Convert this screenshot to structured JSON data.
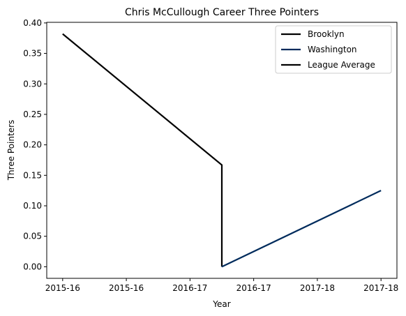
{
  "chart_data": {
    "type": "line",
    "title": "Chris McCullough Career Three Pointers",
    "xlabel": "Year",
    "ylabel": "Three Pointers",
    "x_tick_labels": [
      "2015-16",
      "2015-16",
      "2016-17",
      "2016-17",
      "2017-18",
      "2017-18"
    ],
    "x_tick_values": [
      0,
      1,
      2,
      3,
      4,
      5
    ],
    "xlim": [
      -0.25,
      5.25
    ],
    "y_ticks": [
      0.0,
      0.05,
      0.1,
      0.15,
      0.2,
      0.25,
      0.3,
      0.35,
      0.4
    ],
    "y_tick_labels": [
      "0.00",
      "0.05",
      "0.10",
      "0.15",
      "0.20",
      "0.25",
      "0.30",
      "0.35",
      "0.40"
    ],
    "ylim": [
      -0.019,
      0.401
    ],
    "grid": false,
    "legend_position": "top-right",
    "series": [
      {
        "name": "Brooklyn",
        "color": "#000000",
        "points": [
          [
            0,
            0.382
          ],
          [
            2.5,
            0.167
          ],
          [
            2.5,
            0.0
          ]
        ]
      },
      {
        "name": "Washington",
        "color": "#002B5C",
        "points": [
          [
            2.5,
            0.0
          ],
          [
            5,
            0.125
          ]
        ]
      },
      {
        "name": "League Average",
        "color": "#000000",
        "points": []
      }
    ]
  }
}
